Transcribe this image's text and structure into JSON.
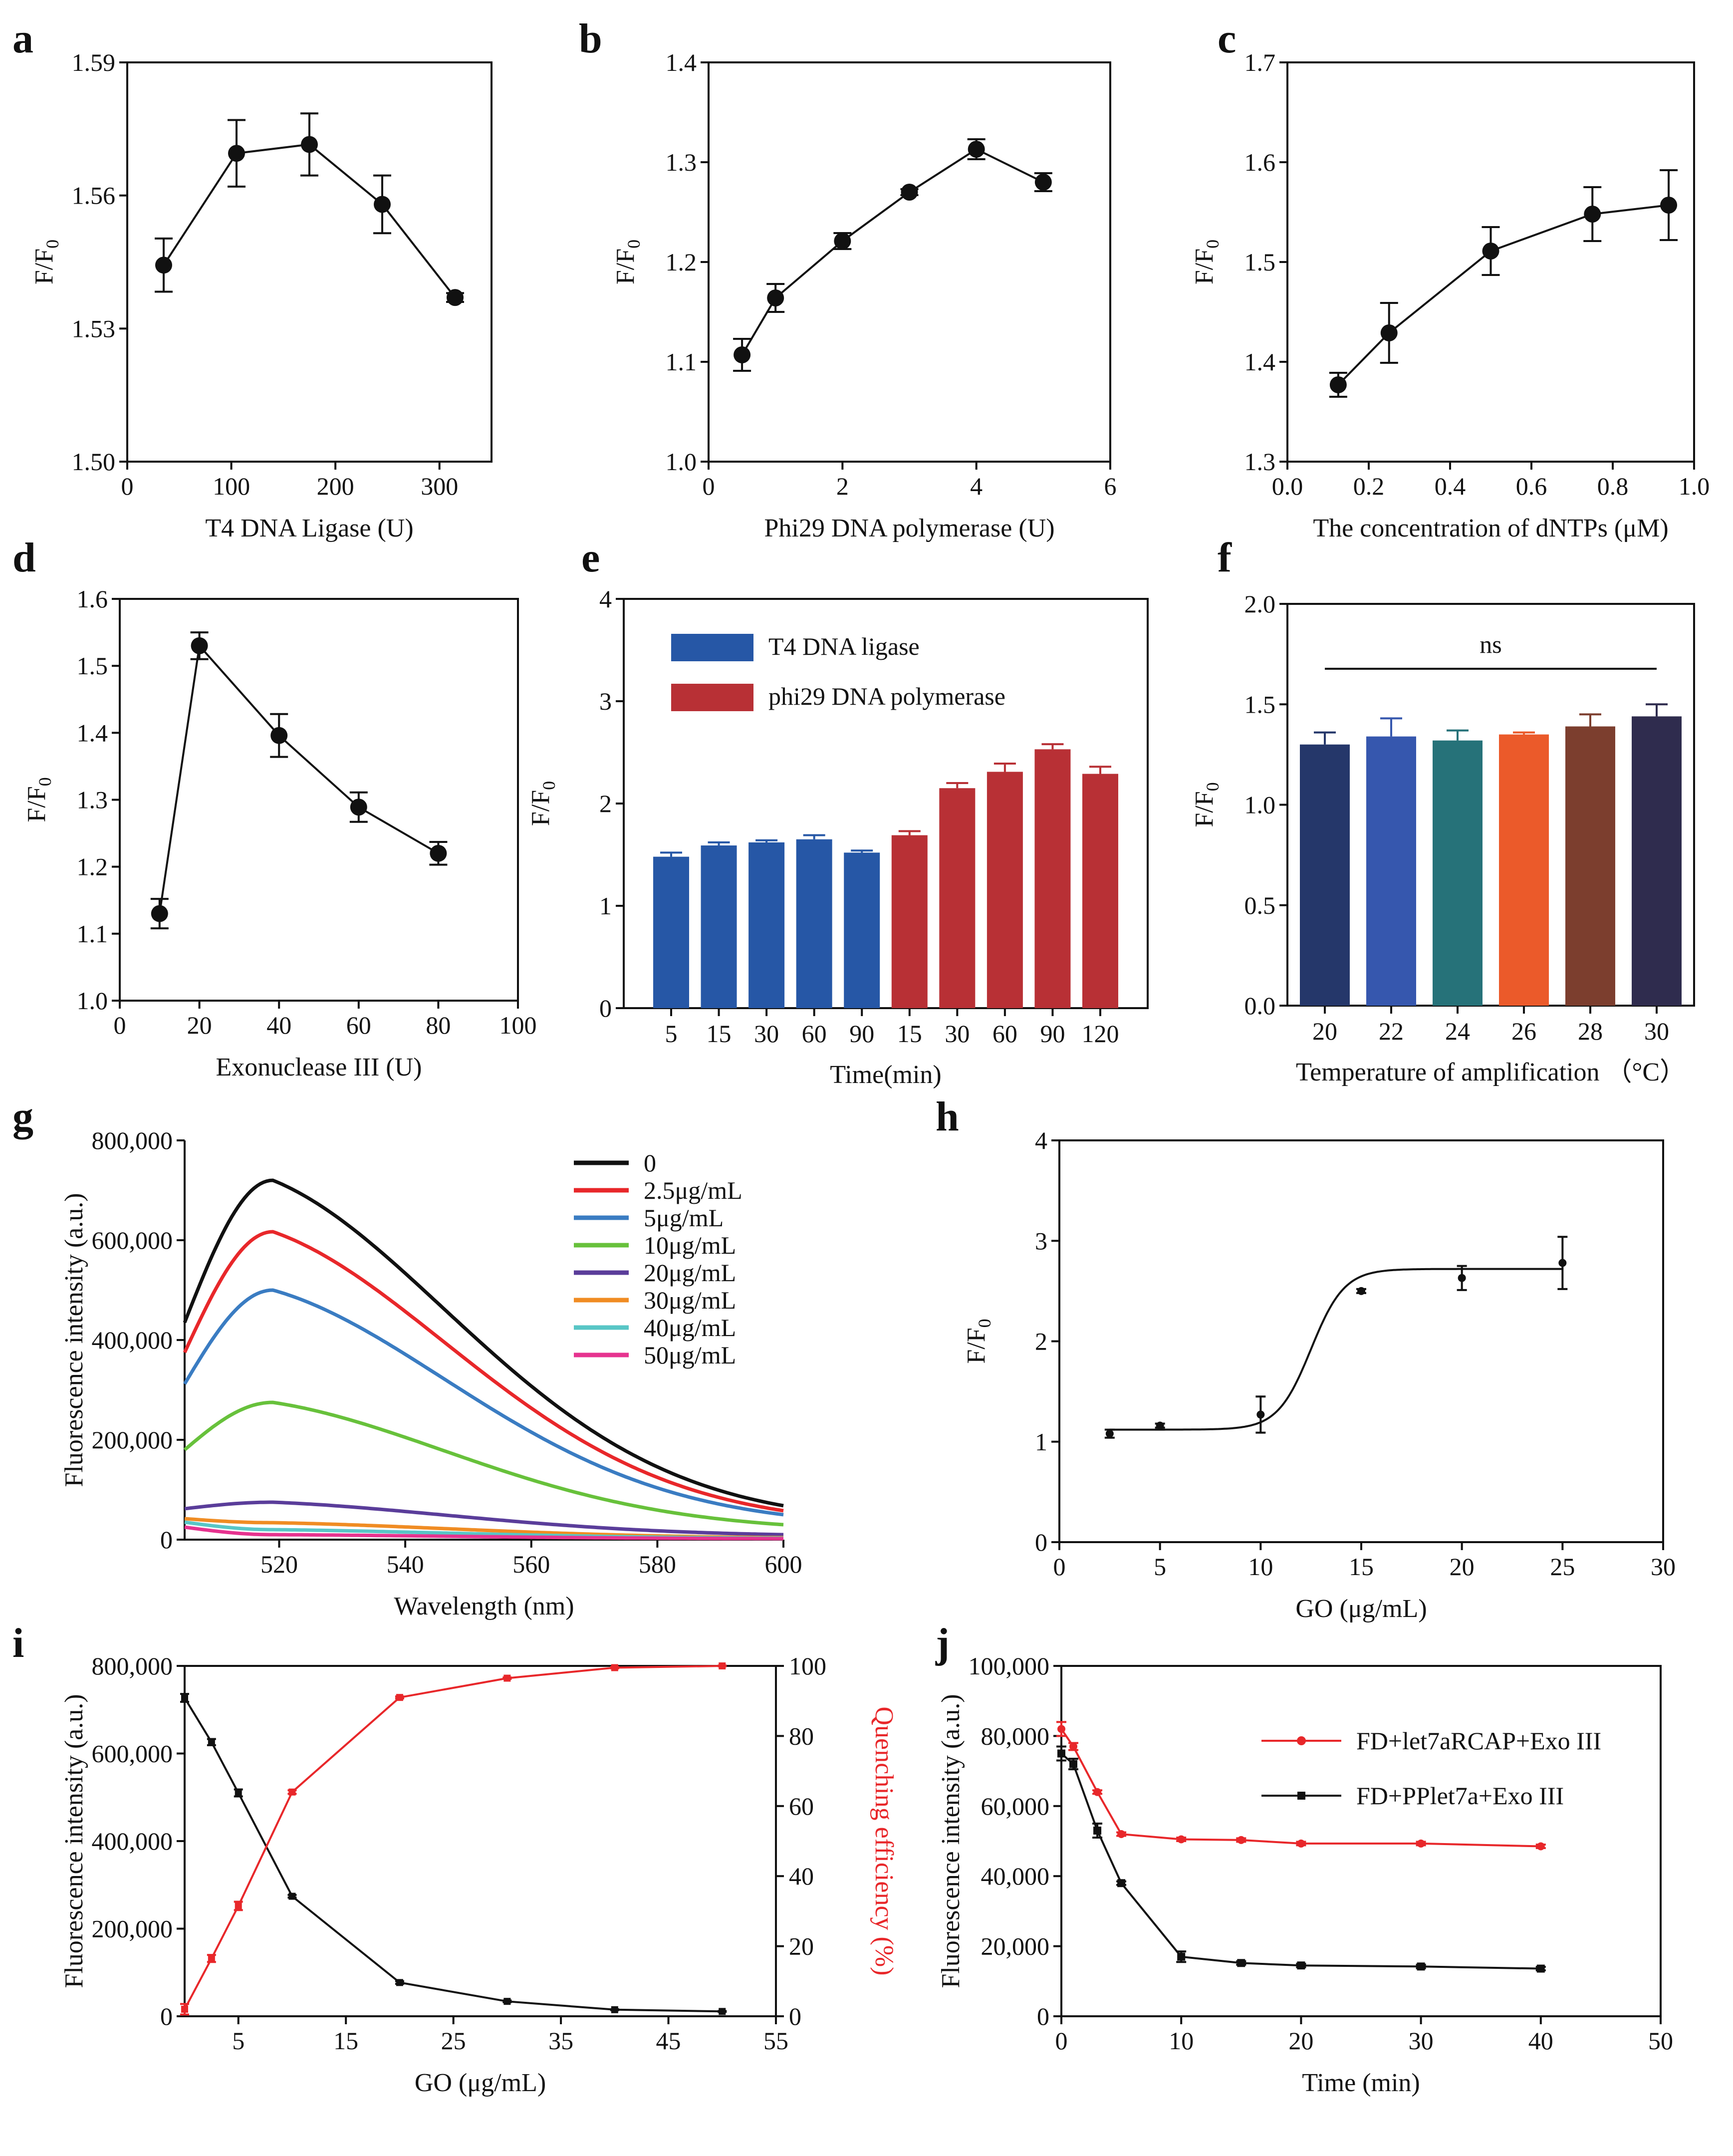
{
  "chart_data": [
    {
      "id": "a",
      "type": "line",
      "panel_label": "a",
      "xlabel": "T4 DNA Ligase (U)",
      "ylabel": "F/F",
      "ylabel_sub": "0",
      "xlim": [
        0,
        350
      ],
      "ylim": [
        1.5,
        1.59
      ],
      "xticks": [
        "0",
        "100",
        "200",
        "300"
      ],
      "xtick_values": [
        0,
        100,
        200,
        300
      ],
      "yticks": [
        "1.50",
        "1.53",
        "1.56",
        "1.59"
      ],
      "ytick_values": [
        1.5,
        1.53,
        1.56,
        1.59
      ],
      "series": [
        {
          "name": "F/F0",
          "color": "#111111",
          "x": [
            35,
            105,
            175,
            245,
            315
          ],
          "y": [
            1.5443,
            1.5695,
            1.5715,
            1.558,
            1.537
          ],
          "err": [
            0.006,
            0.0075,
            0.007,
            0.0065,
            0.001
          ]
        }
      ]
    },
    {
      "id": "b",
      "type": "line",
      "panel_label": "b",
      "xlabel": "Phi29 DNA polymerase (U)",
      "ylabel": "F/F",
      "ylabel_sub": "0",
      "xlim": [
        0,
        6
      ],
      "ylim": [
        1.0,
        1.4
      ],
      "xticks": [
        "0",
        "2",
        "4",
        "6"
      ],
      "xtick_values": [
        0,
        2,
        4,
        6
      ],
      "yticks": [
        "1.0",
        "1.1",
        "1.2",
        "1.3",
        "1.4"
      ],
      "ytick_values": [
        1.0,
        1.1,
        1.2,
        1.3,
        1.4
      ],
      "series": [
        {
          "name": "F/F0",
          "color": "#111111",
          "x": [
            0.5,
            1,
            2,
            3,
            4,
            5
          ],
          "y": [
            1.107,
            1.164,
            1.221,
            1.27,
            1.313,
            1.28
          ],
          "err": [
            0.016,
            0.014,
            0.008,
            0.003,
            0.01,
            0.009
          ]
        }
      ]
    },
    {
      "id": "c",
      "type": "line",
      "panel_label": "c",
      "xlabel": "The concentration of dNTPs (μM)",
      "ylabel": "F/F",
      "ylabel_sub": "0",
      "xlim": [
        0,
        1.0
      ],
      "ylim": [
        1.3,
        1.7
      ],
      "xticks": [
        "0.0",
        "0.2",
        "0.4",
        "0.6",
        "0.8",
        "1.0"
      ],
      "xtick_values": [
        0,
        0.2,
        0.4,
        0.6,
        0.8,
        1.0
      ],
      "yticks": [
        "1.3",
        "1.4",
        "1.5",
        "1.6",
        "1.7"
      ],
      "ytick_values": [
        1.3,
        1.4,
        1.5,
        1.6,
        1.7
      ],
      "series": [
        {
          "name": "F/F0",
          "color": "#111111",
          "x": [
            0.125,
            0.25,
            0.5,
            0.75,
            0.9375
          ],
          "y": [
            1.377,
            1.429,
            1.511,
            1.548,
            1.557
          ],
          "err": [
            0.012,
            0.03,
            0.024,
            0.027,
            0.035
          ]
        }
      ]
    },
    {
      "id": "d",
      "type": "line",
      "panel_label": "d",
      "xlabel": "Exonuclease III (U)",
      "ylabel": "F/F",
      "ylabel_sub": "0",
      "xlim": [
        0,
        100
      ],
      "ylim": [
        1.0,
        1.6
      ],
      "xticks": [
        "0",
        "20",
        "40",
        "60",
        "80",
        "100"
      ],
      "xtick_values": [
        0,
        20,
        40,
        60,
        80,
        100
      ],
      "yticks": [
        "1.0",
        "1.1",
        "1.2",
        "1.3",
        "1.4",
        "1.5",
        "1.6"
      ],
      "ytick_values": [
        1.0,
        1.1,
        1.2,
        1.3,
        1.4,
        1.5,
        1.6
      ],
      "series": [
        {
          "name": "F/F0",
          "color": "#111111",
          "x": [
            10,
            20,
            40,
            60,
            80
          ],
          "y": [
            1.13,
            1.53,
            1.396,
            1.289,
            1.22
          ],
          "err": [
            0.022,
            0.02,
            0.032,
            0.022,
            0.017
          ]
        }
      ]
    },
    {
      "id": "e",
      "type": "bar",
      "panel_label": "e",
      "xlabel": "Time(min)",
      "ylabel": "F/F",
      "ylabel_sub": "0",
      "ylim": [
        0,
        4
      ],
      "yticks": [
        "0",
        "1",
        "2",
        "3",
        "4"
      ],
      "ytick_values": [
        0,
        1,
        2,
        3,
        4
      ],
      "categories": [
        "5",
        "15",
        "30",
        "60",
        "90",
        "15",
        "30",
        "60",
        "90",
        "120"
      ],
      "values": [
        1.48,
        1.59,
        1.62,
        1.65,
        1.52,
        1.69,
        2.15,
        2.31,
        2.53,
        2.29
      ],
      "err": [
        0.04,
        0.03,
        0.02,
        0.04,
        0.02,
        0.04,
        0.05,
        0.08,
        0.05,
        0.07
      ],
      "bar_colors": [
        "#2657a6",
        "#2657a6",
        "#2657a6",
        "#2657a6",
        "#2657a6",
        "#b83035",
        "#b83035",
        "#b83035",
        "#b83035",
        "#b83035"
      ],
      "legend": [
        {
          "name": "T4 DNA ligase",
          "color": "#2657a6"
        },
        {
          "name": "phi29 DNA polymerase",
          "color": "#b83035"
        }
      ]
    },
    {
      "id": "f",
      "type": "bar",
      "panel_label": "f",
      "xlabel": "Temperature of amplification （°C）",
      "ylabel": "F/F",
      "ylabel_sub": "0",
      "ylim": [
        0,
        2.0
      ],
      "yticks": [
        "0.0",
        "0.5",
        "1.0",
        "1.5",
        "2.0"
      ],
      "ytick_values": [
        0,
        0.5,
        1.0,
        1.5,
        2.0
      ],
      "categories": [
        "20",
        "22",
        "24",
        "26",
        "28",
        "30"
      ],
      "values": [
        1.3,
        1.34,
        1.32,
        1.35,
        1.39,
        1.44
      ],
      "err": [
        0.06,
        0.09,
        0.05,
        0.01,
        0.06,
        0.06
      ],
      "bar_colors": [
        "#25376a",
        "#3657ae",
        "#267279",
        "#eb5a2a",
        "#7c3e2e",
        "#2f2c4e"
      ],
      "annotation": "ns"
    },
    {
      "id": "g",
      "type": "line",
      "panel_label": "g",
      "xlabel": "Wavelength (nm)",
      "ylabel": "Fluorescence intensity (a.u.)",
      "xlim": [
        505,
        600
      ],
      "ylim": [
        0,
        800000
      ],
      "xticks": [
        "520",
        "540",
        "560",
        "580",
        "600"
      ],
      "xtick_values": [
        520,
        540,
        560,
        580,
        600
      ],
      "yticks": [
        "0",
        "200,000",
        "400,000",
        "600,000",
        "800,000"
      ],
      "ytick_values": [
        0,
        200000,
        400000,
        600000,
        800000
      ],
      "series": [
        {
          "name": "0",
          "color": "#111111",
          "peak": 720000,
          "start": 435000,
          "end": 68000
        },
        {
          "name": "2.5μg/mL",
          "color": "#e8272a",
          "peak": 617000,
          "start": 375000,
          "end": 58000
        },
        {
          "name": "5μg/mL",
          "color": "#3a7cc2",
          "peak": 500000,
          "start": 312000,
          "end": 50000
        },
        {
          "name": "10μg/mL",
          "color": "#67c13b",
          "peak": 275000,
          "start": 180000,
          "end": 30000
        },
        {
          "name": "20μg/mL",
          "color": "#5a3d9a",
          "peak": 75000,
          "start": 62000,
          "end": 10000
        },
        {
          "name": "30μg/mL",
          "color": "#f08c23",
          "peak": 34000,
          "start": 42000,
          "end": 4000
        },
        {
          "name": "40μg/mL",
          "color": "#58c6c6",
          "peak": 20000,
          "start": 35000,
          "end": 3000
        },
        {
          "name": "50μg/mL",
          "color": "#e6338f",
          "peak": 10000,
          "start": 25000,
          "end": 2000
        }
      ]
    },
    {
      "id": "h",
      "type": "scatter",
      "panel_label": "h",
      "xlabel": "GO (μg/mL)",
      "ylabel": "F/F",
      "ylabel_sub": "0",
      "xlim": [
        0,
        30
      ],
      "ylim": [
        0,
        4
      ],
      "xticks": [
        "0",
        "5",
        "10",
        "15",
        "20",
        "25",
        "30"
      ],
      "xtick_values": [
        0,
        5,
        10,
        15,
        20,
        25,
        30
      ],
      "yticks": [
        "0",
        "1",
        "2",
        "3",
        "4"
      ],
      "ytick_values": [
        0,
        1,
        2,
        3,
        4
      ],
      "series": [
        {
          "name": "F/F0",
          "color": "#111111",
          "x": [
            2.5,
            5,
            10,
            15,
            20,
            25
          ],
          "y": [
            1.08,
            1.16,
            1.27,
            2.5,
            2.63,
            2.78
          ],
          "err": [
            0.04,
            0.02,
            0.18,
            0.02,
            0.12,
            0.26
          ],
          "fit": {
            "bottom": 1.12,
            "top": 2.72,
            "x50": 12.5,
            "slope": 0.55
          }
        }
      ]
    },
    {
      "id": "i",
      "type": "line",
      "panel_label": "i",
      "xlabel": "GO (μg/mL)",
      "ylabel": "Fluorescence intensity (a.u.)",
      "ylabel_right": "Quenching efficiency (%)",
      "xlim": [
        0,
        55
      ],
      "ylim": [
        0,
        800000
      ],
      "ylim_right": [
        0,
        100
      ],
      "xticks": [
        "5",
        "15",
        "25",
        "35",
        "45",
        "55"
      ],
      "xtick_values": [
        5,
        15,
        25,
        35,
        45,
        55
      ],
      "yticks": [
        "0",
        "200,000",
        "400,000",
        "600,000",
        "800,000"
      ],
      "ytick_values": [
        0,
        200000,
        400000,
        600000,
        800000
      ],
      "yticks_right": [
        "0",
        "20",
        "40",
        "60",
        "80",
        "100"
      ],
      "ytick_values_right": [
        0,
        20,
        40,
        60,
        80,
        100
      ],
      "series": [
        {
          "name": "Fluorescence intensity",
          "axis": "left",
          "color": "#111111",
          "x": [
            0,
            2.5,
            5,
            10,
            20,
            30,
            40,
            50
          ],
          "y": [
            727000,
            626000,
            510000,
            274000,
            77000,
            34000,
            15000,
            11000
          ],
          "err": [
            9000,
            7000,
            8000,
            3000,
            3000,
            2000,
            1000,
            1000
          ]
        },
        {
          "name": "Quenching efficiency",
          "axis": "right",
          "color": "#e8272a",
          "x": [
            0,
            2.5,
            5,
            10,
            20,
            30,
            40,
            50
          ],
          "y": [
            2,
            16.5,
            31.5,
            64,
            91,
            96.5,
            99.5,
            100
          ],
          "err": [
            1.5,
            1.0,
            1.2,
            0.5,
            0.3,
            0.2,
            0.2,
            0.1
          ]
        }
      ]
    },
    {
      "id": "j",
      "type": "line",
      "panel_label": "j",
      "xlabel": "Time (min)",
      "ylabel": "Fluorescence intensity (a.u.)",
      "xlim": [
        0,
        50
      ],
      "ylim": [
        0,
        100000
      ],
      "xticks": [
        "0",
        "10",
        "20",
        "30",
        "40",
        "50"
      ],
      "xtick_values": [
        0,
        10,
        20,
        30,
        40,
        50
      ],
      "yticks": [
        "0",
        "20,000",
        "40,000",
        "60,000",
        "80,000",
        "100,000"
      ],
      "ytick_values": [
        0,
        20000,
        40000,
        60000,
        80000,
        100000
      ],
      "series": [
        {
          "name": "FD+let7aRCAP+Exo III",
          "color": "#e8272a",
          "marker": "circle",
          "x": [
            0,
            1,
            3,
            5,
            10,
            15,
            20,
            30,
            40
          ],
          "y": [
            82000,
            77000,
            64000,
            52000,
            50500,
            50300,
            49300,
            49300,
            48500
          ],
          "err": [
            2000,
            1000,
            500,
            500,
            500,
            500,
            500,
            500,
            500
          ]
        },
        {
          "name": "FD+PPlet7a+Exo III",
          "color": "#111111",
          "marker": "square",
          "x": [
            0,
            1,
            3,
            5,
            10,
            15,
            20,
            30,
            40
          ],
          "y": [
            75000,
            72000,
            53000,
            38000,
            17000,
            15200,
            14500,
            14200,
            13600
          ],
          "err": [
            2000,
            1500,
            2000,
            500,
            1500,
            500,
            500,
            500,
            500
          ]
        }
      ]
    }
  ]
}
